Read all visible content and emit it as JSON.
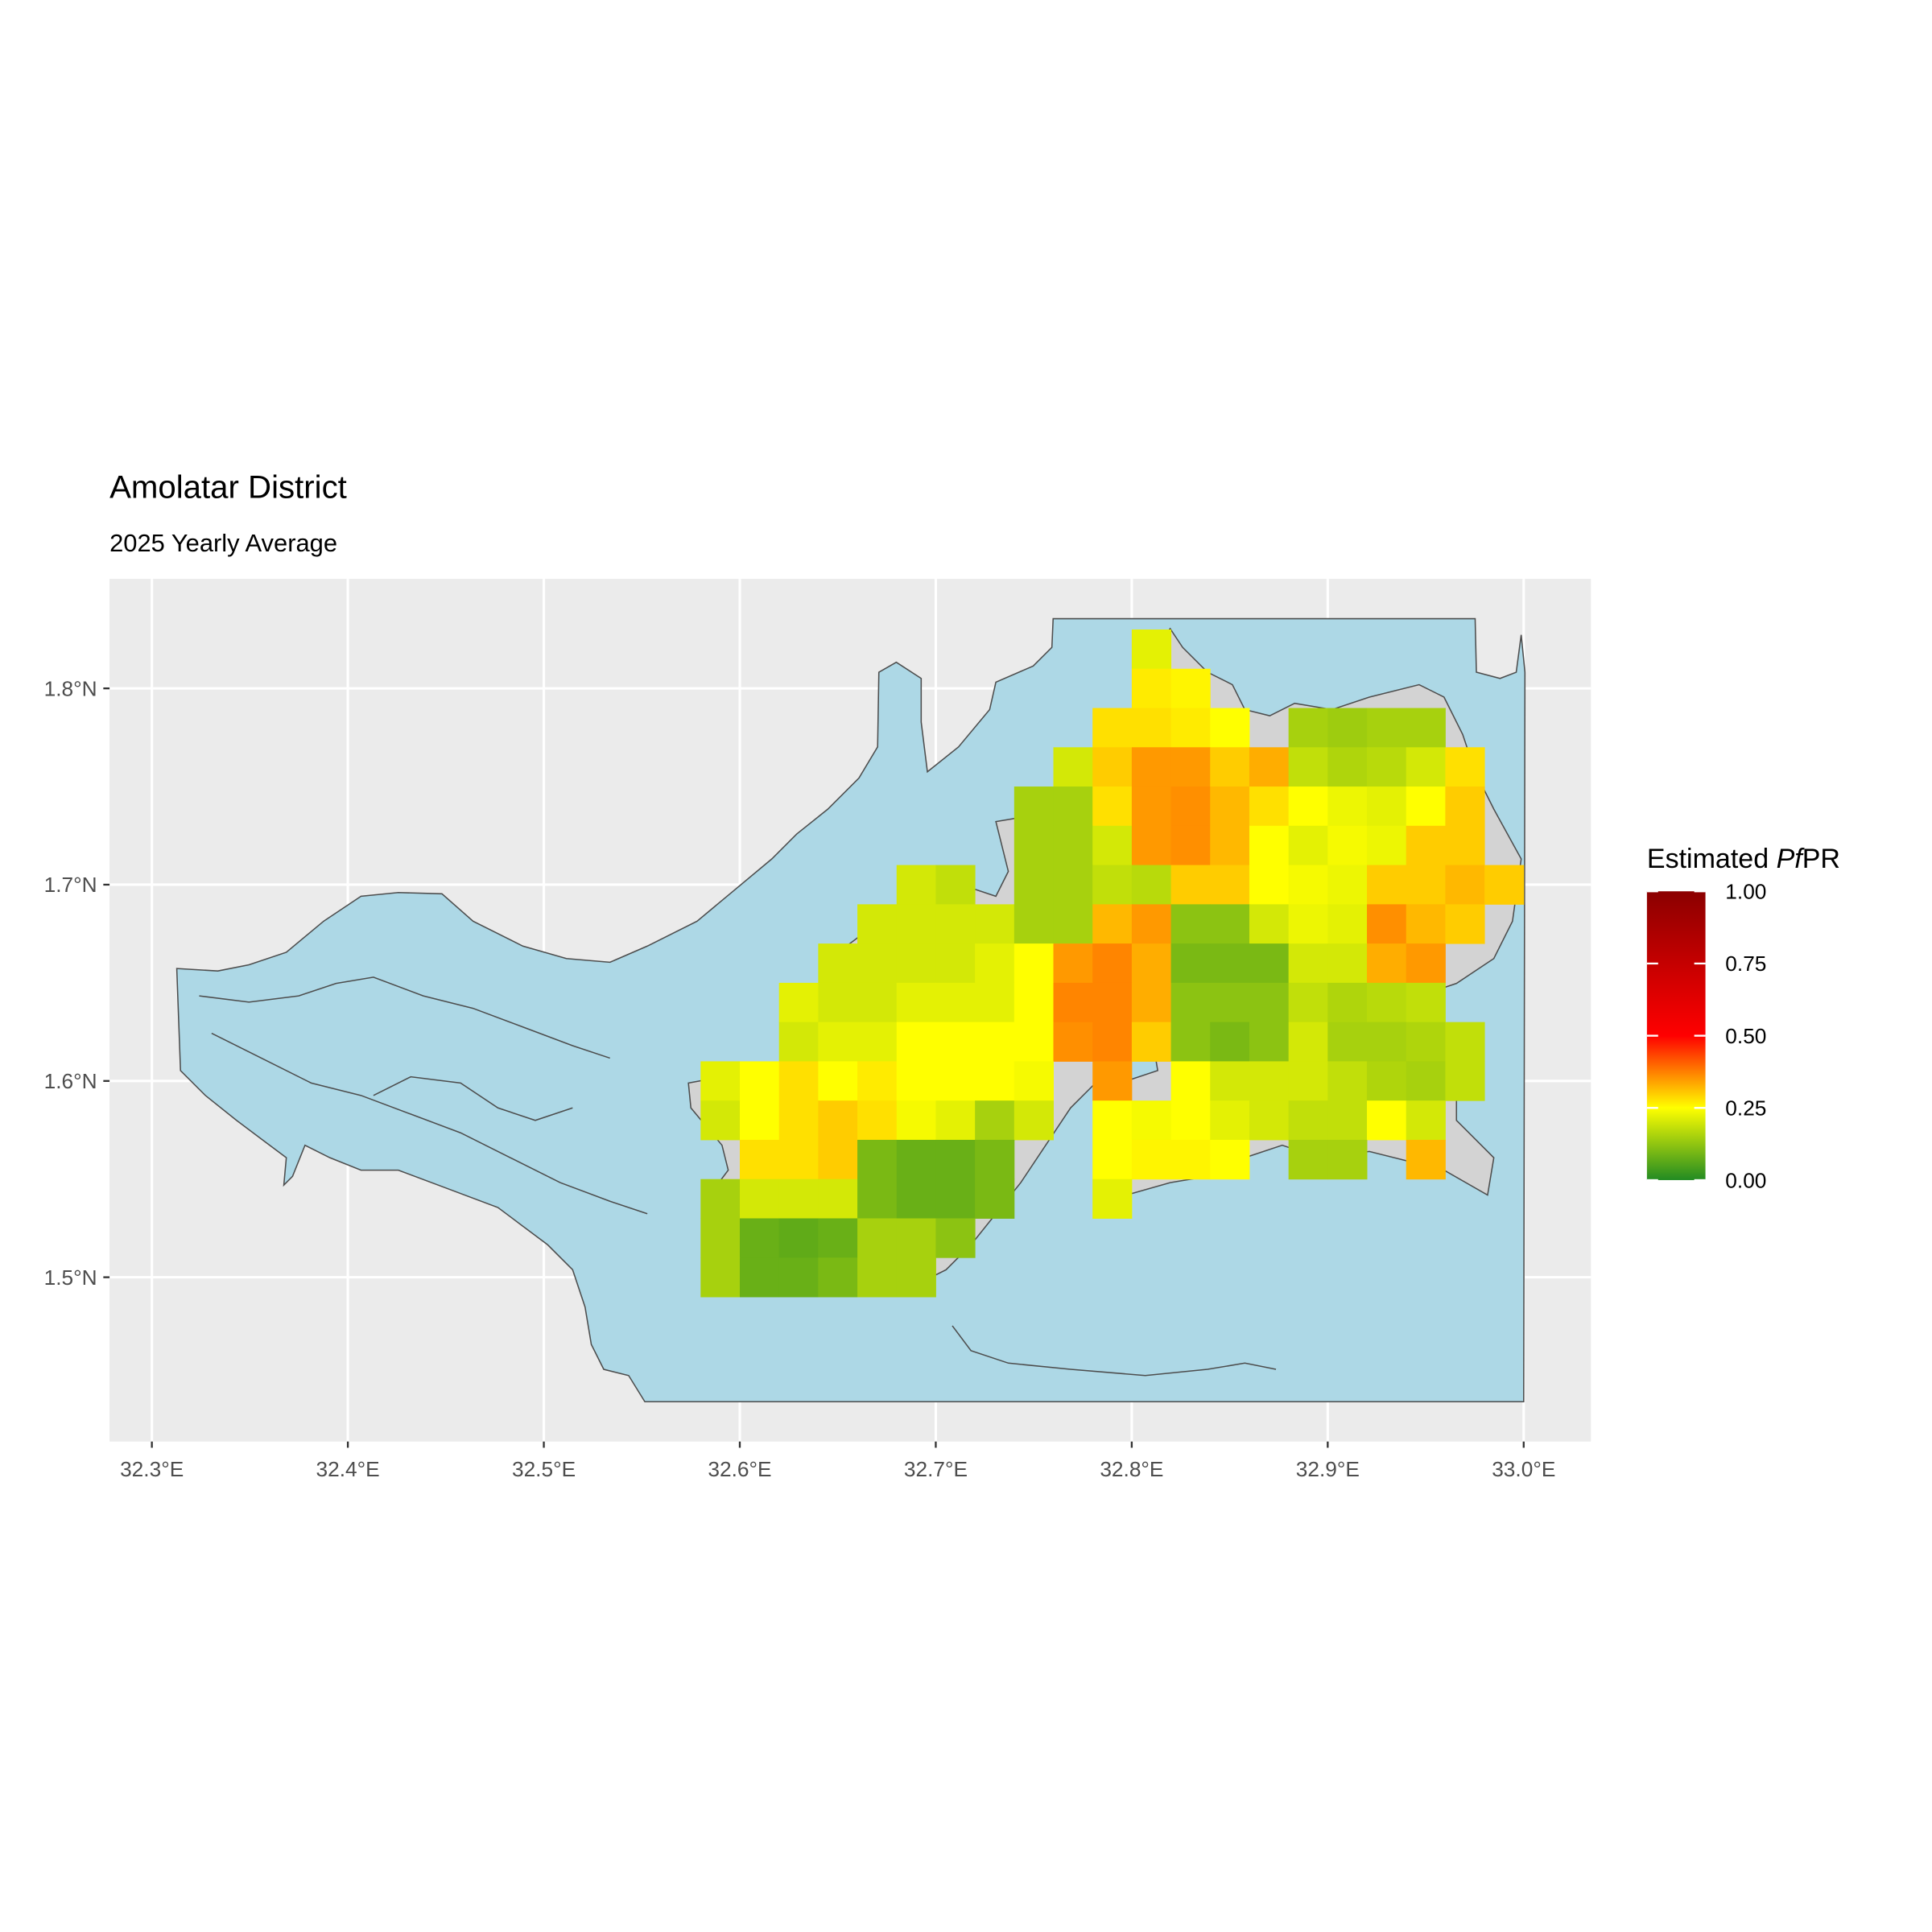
{
  "chart_data": {
    "type": "raster-map",
    "title": "Amolatar District",
    "subtitle": "2025 Yearly Average",
    "xlim": [
      32.2784,
      33.0343
    ],
    "ylim": [
      1.4163,
      1.8558
    ],
    "xticks": [
      {
        "value": 32.3,
        "label": "32.3°E"
      },
      {
        "value": 32.4,
        "label": "32.4°E"
      },
      {
        "value": 32.5,
        "label": "32.5°E"
      },
      {
        "value": 32.6,
        "label": "32.6°E"
      },
      {
        "value": 32.7,
        "label": "32.7°E"
      },
      {
        "value": 32.8,
        "label": "32.8°E"
      },
      {
        "value": 32.9,
        "label": "32.9°E"
      },
      {
        "value": 33.0,
        "label": "33.0°E"
      }
    ],
    "yticks": [
      {
        "value": 1.5,
        "label": "1.5°N"
      },
      {
        "value": 1.6,
        "label": "1.6°N"
      },
      {
        "value": 1.7,
        "label": "1.7°N"
      },
      {
        "value": 1.8,
        "label": "1.8°N"
      }
    ],
    "grid": true,
    "legend_title": [
      {
        "text": "Estimated "
      },
      {
        "text": "Pf",
        "italic": true
      },
      {
        "text": "PR"
      }
    ],
    "legend_ticks": [
      {
        "value": 0,
        "label": "0.00"
      },
      {
        "value": 0.25,
        "label": "0.25"
      },
      {
        "value": 0.5,
        "label": "0.50"
      },
      {
        "value": 0.75,
        "label": "0.75"
      },
      {
        "value": 1,
        "label": "1.00"
      }
    ],
    "color_stops": [
      {
        "value": 0,
        "color": "#228b22"
      },
      {
        "value": 0.25,
        "color": "#ffff00"
      },
      {
        "value": 0.5,
        "color": "#ff0000"
      },
      {
        "value": 1,
        "color": "#8b0000"
      }
    ],
    "lon": [
      32.58,
      32.6,
      32.62,
      32.64,
      32.66,
      32.68,
      32.7,
      32.72,
      32.74,
      32.76,
      32.78,
      32.8,
      32.82,
      32.84,
      32.86,
      32.88,
      32.9,
      32.92,
      32.94,
      32.96,
      32.98
    ],
    "lat": [
      1.83,
      1.81,
      1.79,
      1.77,
      1.75,
      1.73,
      1.71,
      1.69,
      1.67,
      1.65,
      1.63,
      1.61,
      1.59,
      1.57,
      1.55,
      1.53,
      1.51
    ],
    "values": [
      [
        null,
        null,
        null,
        null,
        null,
        null,
        null,
        null,
        null,
        null,
        null,
        0.22,
        null,
        null,
        null,
        null,
        null,
        null,
        null,
        null,
        null
      ],
      [
        null,
        null,
        null,
        null,
        null,
        null,
        null,
        null,
        null,
        null,
        null,
        0.27,
        0.26,
        null,
        null,
        null,
        null,
        null,
        null,
        null,
        null
      ],
      [
        null,
        null,
        null,
        null,
        null,
        null,
        null,
        null,
        null,
        null,
        0.28,
        0.28,
        0.27,
        0.25,
        null,
        0.15,
        0.14,
        0.15,
        0.15,
        null,
        null
      ],
      [
        null,
        null,
        null,
        null,
        null,
        null,
        null,
        null,
        null,
        0.2,
        0.3,
        0.35,
        0.35,
        0.3,
        0.33,
        0.18,
        0.16,
        0.17,
        0.2,
        0.28,
        null
      ],
      [
        null,
        null,
        null,
        null,
        null,
        null,
        null,
        null,
        0.15,
        0.15,
        0.28,
        0.35,
        0.36,
        0.32,
        0.28,
        0.25,
        0.23,
        0.22,
        0.25,
        0.3,
        null
      ],
      [
        null,
        null,
        null,
        null,
        null,
        null,
        null,
        null,
        0.15,
        0.15,
        0.2,
        0.35,
        0.36,
        0.32,
        0.25,
        0.22,
        0.24,
        0.23,
        0.3,
        0.3,
        null
      ],
      [
        null,
        null,
        null,
        null,
        null,
        0.2,
        0.18,
        null,
        0.15,
        0.15,
        0.18,
        0.17,
        0.3,
        0.3,
        0.25,
        0.24,
        0.23,
        0.3,
        0.3,
        0.32,
        0.3
      ],
      [
        null,
        null,
        null,
        null,
        0.2,
        0.2,
        0.2,
        0.2,
        0.15,
        0.15,
        0.32,
        0.35,
        0.12,
        0.12,
        0.2,
        0.23,
        0.22,
        0.36,
        0.32,
        0.3,
        null
      ],
      [
        null,
        null,
        null,
        0.2,
        0.2,
        0.2,
        0.2,
        0.22,
        0.25,
        0.35,
        0.37,
        0.33,
        0.1,
        0.1,
        0.1,
        0.2,
        0.2,
        0.33,
        0.35,
        null,
        null
      ],
      [
        null,
        null,
        0.22,
        0.2,
        0.2,
        0.22,
        0.22,
        0.22,
        0.25,
        0.37,
        0.37,
        0.33,
        0.12,
        0.12,
        0.12,
        0.18,
        0.16,
        0.17,
        0.18,
        null,
        null
      ],
      [
        null,
        null,
        0.2,
        0.22,
        0.22,
        0.25,
        0.25,
        0.25,
        0.25,
        0.36,
        0.37,
        0.3,
        0.12,
        0.1,
        0.12,
        0.2,
        0.15,
        0.15,
        0.16,
        0.18,
        null
      ],
      [
        0.22,
        0.25,
        0.28,
        0.25,
        0.27,
        0.25,
        0.25,
        0.25,
        0.24,
        null,
        0.35,
        null,
        0.25,
        0.2,
        0.2,
        0.2,
        0.18,
        0.16,
        0.15,
        0.18,
        null
      ],
      [
        0.2,
        0.25,
        0.28,
        0.3,
        0.28,
        0.24,
        0.22,
        0.15,
        0.2,
        null,
        0.25,
        0.24,
        0.25,
        0.22,
        0.2,
        0.18,
        0.18,
        0.25,
        0.2,
        null,
        null
      ],
      [
        null,
        0.28,
        0.28,
        0.3,
        0.1,
        0.08,
        0.08,
        0.1,
        null,
        null,
        0.25,
        0.26,
        0.26,
        0.25,
        null,
        0.15,
        0.15,
        null,
        0.32,
        null,
        null
      ],
      [
        0.15,
        0.2,
        0.2,
        0.2,
        0.1,
        0.08,
        0.08,
        0.1,
        null,
        null,
        0.22,
        null,
        null,
        null,
        null,
        null,
        null,
        null,
        null,
        null,
        null
      ],
      [
        0.15,
        0.08,
        0.07,
        0.08,
        0.15,
        0.15,
        0.12,
        null,
        null,
        null,
        null,
        null,
        null,
        null,
        null,
        null,
        null,
        null,
        null,
        null,
        null
      ],
      [
        0.15,
        0.08,
        0.08,
        0.1,
        0.15,
        0.15,
        null,
        null,
        null,
        null,
        null,
        null,
        null,
        null,
        null,
        null,
        null,
        null,
        null,
        null,
        null
      ]
    ]
  }
}
